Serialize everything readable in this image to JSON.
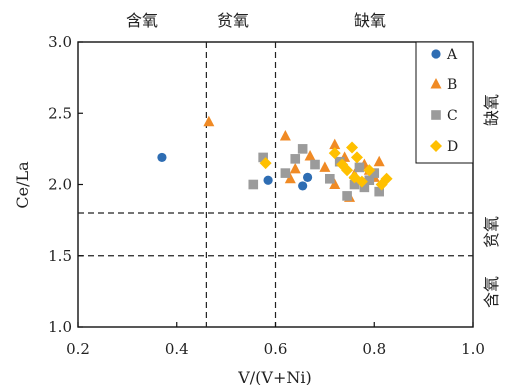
{
  "chart_data": {
    "type": "scatter",
    "xlabel": "V/(V+Ni)",
    "ylabel": "Ce/La",
    "xlim": [
      0.2,
      1.0
    ],
    "ylim": [
      1.0,
      3.0
    ],
    "xticks": [
      "0.2",
      "0.4",
      "0.6",
      "0.8",
      "1.0"
    ],
    "yticks": [
      "1.0",
      "1.5",
      "2.0",
      "2.5",
      "3.0"
    ],
    "grid": false,
    "legend_position": "top-right",
    "vertical_dividers": [
      0.46,
      0.6
    ],
    "horizontal_dividers": [
      1.5,
      1.8
    ],
    "top_zone_labels": [
      "含氧",
      "贫氧",
      "缺氧"
    ],
    "right_zone_labels": [
      "缺氧",
      "贫氧",
      "含氧"
    ],
    "series": [
      {
        "name": "A",
        "marker": "circle",
        "color": "#2e6db3",
        "points": [
          [
            0.37,
            2.19
          ],
          [
            0.585,
            2.03
          ],
          [
            0.655,
            1.99
          ],
          [
            0.665,
            2.05
          ]
        ]
      },
      {
        "name": "B",
        "marker": "triangle",
        "color": "#f08a24",
        "points": [
          [
            0.465,
            2.44
          ],
          [
            0.62,
            2.34
          ],
          [
            0.63,
            2.04
          ],
          [
            0.64,
            2.11
          ],
          [
            0.67,
            2.2
          ],
          [
            0.7,
            2.12
          ],
          [
            0.72,
            2.28
          ],
          [
            0.74,
            2.19
          ],
          [
            0.75,
            1.91
          ],
          [
            0.76,
            2.07
          ],
          [
            0.78,
            2.14
          ],
          [
            0.8,
            2.05
          ],
          [
            0.81,
            2.16
          ],
          [
            0.72,
            2.0
          ],
          [
            0.79,
            2.1
          ]
        ]
      },
      {
        "name": "C",
        "marker": "square",
        "color": "#9b9b9b",
        "points": [
          [
            0.555,
            2.0
          ],
          [
            0.575,
            2.19
          ],
          [
            0.62,
            2.08
          ],
          [
            0.64,
            2.18
          ],
          [
            0.655,
            2.25
          ],
          [
            0.68,
            2.14
          ],
          [
            0.71,
            2.04
          ],
          [
            0.73,
            2.16
          ],
          [
            0.745,
            1.92
          ],
          [
            0.76,
            2.0
          ],
          [
            0.78,
            1.98
          ],
          [
            0.79,
            2.03
          ],
          [
            0.8,
            2.08
          ],
          [
            0.81,
            1.95
          ],
          [
            0.77,
            2.12
          ]
        ]
      },
      {
        "name": "D",
        "marker": "diamond",
        "color": "#ffc000",
        "points": [
          [
            0.58,
            2.15
          ],
          [
            0.72,
            2.22
          ],
          [
            0.735,
            2.14
          ],
          [
            0.755,
            2.26
          ],
          [
            0.765,
            2.19
          ],
          [
            0.775,
            2.02
          ],
          [
            0.79,
            2.1
          ],
          [
            0.815,
            2.0
          ],
          [
            0.825,
            2.04
          ],
          [
            0.745,
            2.1
          ],
          [
            0.76,
            2.05
          ]
        ]
      }
    ]
  }
}
